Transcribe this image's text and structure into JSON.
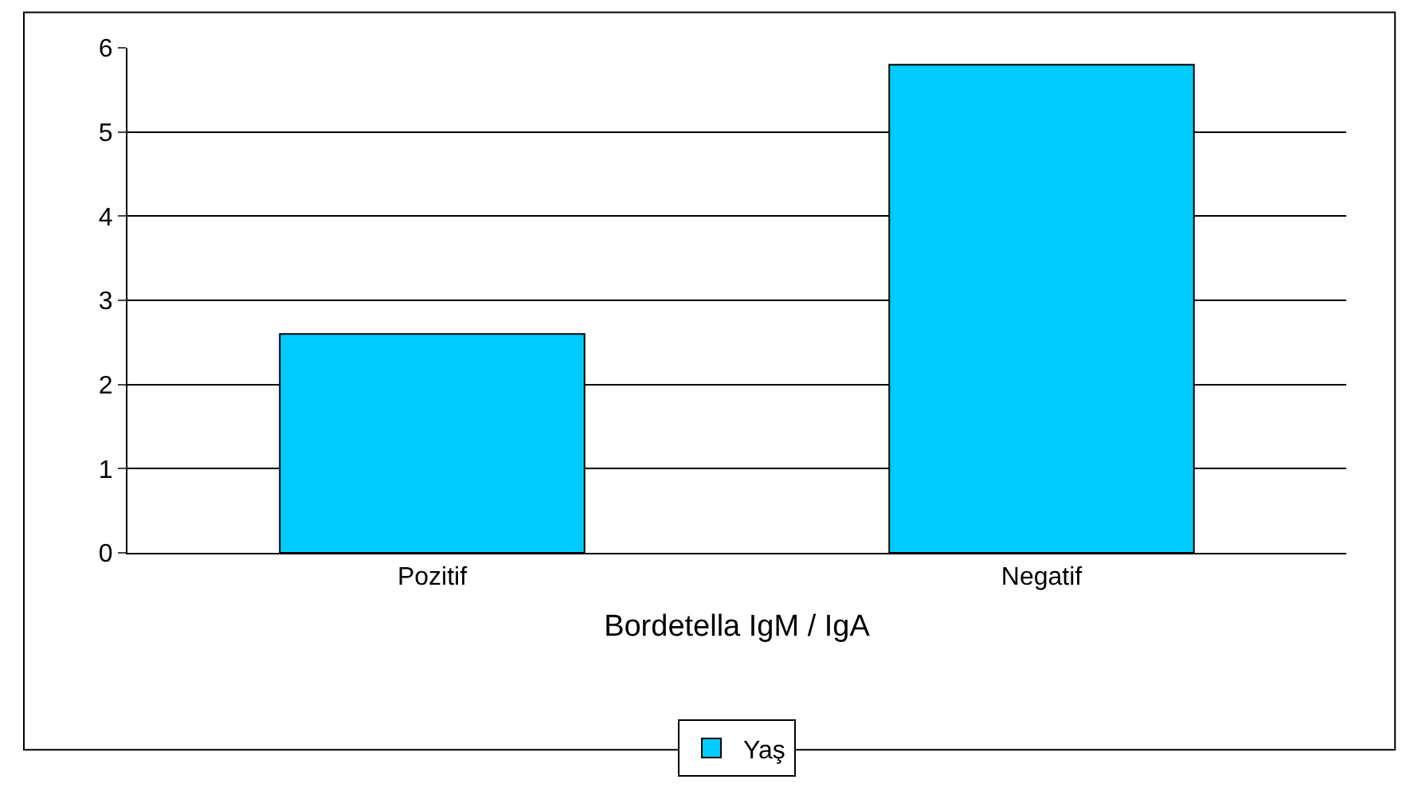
{
  "chart_data": {
    "type": "bar",
    "categories": [
      "Pozitif",
      "Negatif"
    ],
    "series": [
      {
        "name": "Yaş",
        "color": "#00ccff",
        "values": [
          2.6,
          5.8
        ]
      }
    ],
    "xlabel": "Bordetella IgM / IgA",
    "ylim": [
      0,
      6
    ],
    "yticks": [
      0,
      1,
      2,
      3,
      4,
      5,
      6
    ],
    "grid": "y",
    "legend": "bottom"
  }
}
